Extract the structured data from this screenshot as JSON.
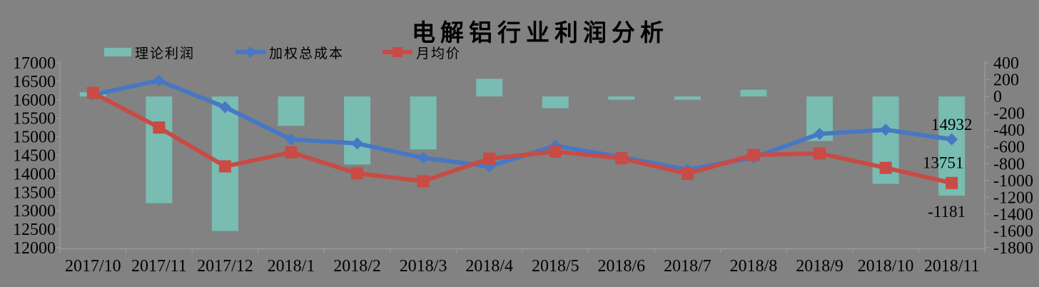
{
  "title": "电解铝行业利润分析",
  "background_color": "#828282",
  "axis_color": "#989898",
  "text_color": "#000000",
  "chart_data": {
    "type": "combo-bar-line",
    "title": "电解铝行业利润分析",
    "grid": false,
    "legend_position": "top",
    "categories": [
      "2017/10",
      "2017/11",
      "2017/12",
      "2018/1",
      "2018/2",
      "2018/3",
      "2018/4",
      "2018/5",
      "2018/6",
      "2018/7",
      "2018/8",
      "2018/9",
      "2018/10",
      "2018/11"
    ],
    "series": [
      {
        "name": "理论利润",
        "type": "bar",
        "axis": "right",
        "color": "#78BCB2",
        "values": [
          50,
          -1270,
          -1600,
          -350,
          -810,
          -630,
          210,
          -140,
          -40,
          -40,
          80,
          -530,
          -1040,
          -1181
        ]
      },
      {
        "name": "加权总成本",
        "type": "line",
        "marker": "diamond",
        "axis": "left",
        "color": "#4678C3",
        "values": [
          16140,
          16520,
          15800,
          14930,
          14820,
          14430,
          14200,
          14760,
          14450,
          14110,
          14440,
          15080,
          15190,
          14932
        ]
      },
      {
        "name": "月均价",
        "type": "line",
        "marker": "square",
        "axis": "left",
        "color": "#C84B46",
        "values": [
          16190,
          15250,
          14200,
          14580,
          14010,
          13800,
          14410,
          14600,
          14420,
          14000,
          14510,
          14550,
          14160,
          13751
        ]
      }
    ],
    "left_axis": {
      "min": 12000,
      "max": 17000,
      "step": 500,
      "tick_labels": [
        "17000",
        "16500",
        "16000",
        "15500",
        "15000",
        "14500",
        "14000",
        "13500",
        "13000",
        "12500",
        "12000"
      ]
    },
    "right_axis": {
      "min": -1800,
      "max": 400,
      "step": 200,
      "tick_labels": [
        "400",
        "200",
        "0",
        "-200",
        "-400",
        "-600",
        "-800",
        "-1000",
        "-1200",
        "-1400",
        "-1600",
        "-1800"
      ]
    },
    "data_labels": [
      {
        "text": "14932",
        "series": 1,
        "point": 13
      },
      {
        "text": "13751",
        "series": 2,
        "point": 13
      },
      {
        "text": "-1181",
        "series": 0,
        "point": 13
      }
    ]
  }
}
